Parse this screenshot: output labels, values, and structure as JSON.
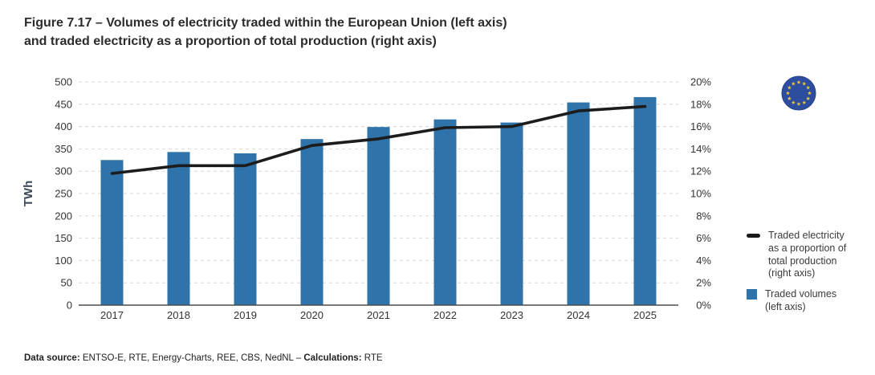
{
  "figure": {
    "title": "Figure 7.17 – Volumes of electricity traded within the European Union (left axis)\nand traded electricity as a proportion of total production (right axis)"
  },
  "chart_data": {
    "type": "bar",
    "subtype": "bar+line dual axis",
    "categories": [
      "2017",
      "2018",
      "2019",
      "2020",
      "2021",
      "2022",
      "2023",
      "2024",
      "2025"
    ],
    "series": [
      {
        "name": "Traded volumes (left axis)",
        "type": "bar",
        "axis": "left",
        "unit": "TWh",
        "color": "#2e73a9",
        "values": [
          325,
          343,
          340,
          372,
          399,
          416,
          409,
          454,
          466
        ]
      },
      {
        "name": "Traded electricity as a proportion of total production (right axis)",
        "type": "line",
        "axis": "right",
        "unit": "%",
        "color": "#1c1c1c",
        "values": [
          11.8,
          12.5,
          12.5,
          14.3,
          14.9,
          15.9,
          16.0,
          17.4,
          17.8
        ]
      }
    ],
    "left_axis": {
      "label": "TWh",
      "min": 0,
      "max": 500,
      "step": 50,
      "label_color": "#3e4a5c"
    },
    "right_axis": {
      "min": 0,
      "max": 20,
      "step": 2,
      "tick_suffix": "%"
    },
    "grid": {
      "horizontal": true,
      "style": "dashed",
      "color": "#d7d7d7"
    },
    "baseline_color": "#4d4d4d",
    "tick_label_color": "#333333",
    "legend_position": "right"
  },
  "legend": {
    "line_label": "Traded electricity\nas a proportion of\ntotal production\n(right axis)",
    "bar_label": "Traded volumes\n(left axis)"
  },
  "eu_flag": {
    "circle_color": "#2d4d9e",
    "star_color": "#f2c83b"
  },
  "footer": {
    "source_label": "Data source:",
    "source_text": " ENTSO-E, RTE, Energy-Charts, REE, CBS, NedNL – ",
    "calc_label": "Calculations:",
    "calc_text": " RTE"
  }
}
